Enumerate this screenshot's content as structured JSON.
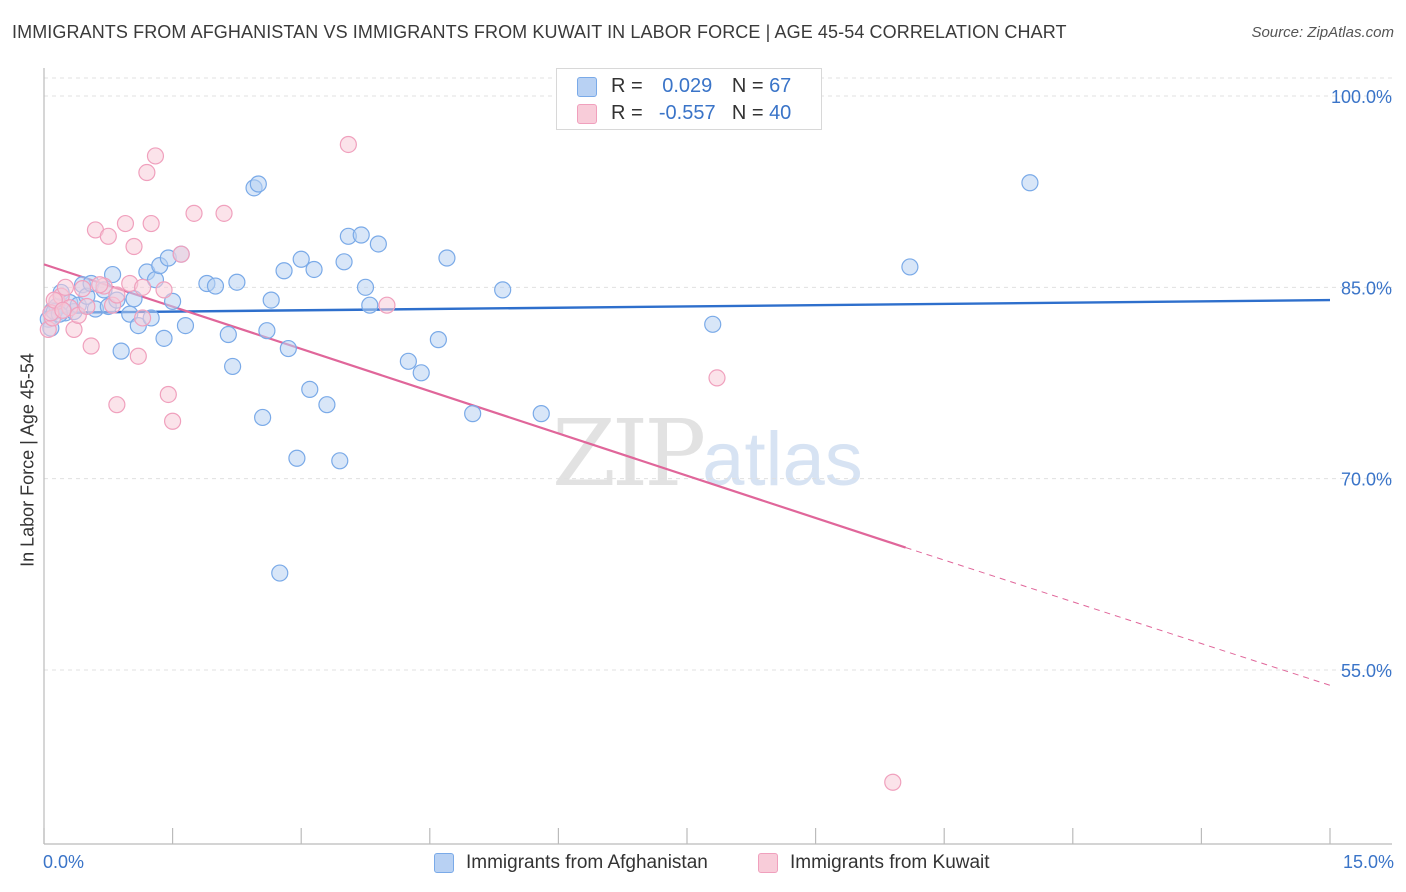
{
  "title": "IMMIGRANTS FROM AFGHANISTAN VS IMMIGRANTS FROM KUWAIT IN LABOR FORCE | AGE 45-54 CORRELATION CHART",
  "source": "Source: ZipAtlas.com",
  "watermark": {
    "zip": "ZIP",
    "atlas": "atlas"
  },
  "legend": {
    "rows": [
      {
        "r_label": "R =",
        "r_value": "0.029",
        "n_label": "N =",
        "n_value": "67"
      },
      {
        "r_label": "R =",
        "r_value": "-0.557",
        "n_label": "N =",
        "n_value": "40"
      }
    ]
  },
  "x_axis": {
    "min_label": "0.0%",
    "max_label": "15.0%"
  },
  "chart_data": {
    "type": "scatter",
    "xlabel": "",
    "ylabel": "In Labor Force | Age 45-54",
    "xlim": [
      0,
      15
    ],
    "ylim": [
      40,
      103
    ],
    "x_unit": "%",
    "y_unit": "%",
    "y_ticks": [
      {
        "value": 100,
        "label": "100.0%"
      },
      {
        "value": 85,
        "label": "85.0%"
      },
      {
        "value": 70,
        "label": "70.0%"
      },
      {
        "value": 55,
        "label": "55.0%"
      }
    ],
    "grid": "horizontal dashed",
    "legend_position": "top-center",
    "series": [
      {
        "name": "Immigrants from Afghanistan",
        "color": "#7aaae8",
        "fill": "#b8d1f3",
        "trend": {
          "x0": 0,
          "y0": 83.0,
          "x1": 15,
          "y1": 84.0,
          "color": "#2e6fcc"
        },
        "points": [
          [
            0.1,
            83.2
          ],
          [
            0.15,
            83.5
          ],
          [
            0.2,
            84.6
          ],
          [
            0.25,
            83.0
          ],
          [
            0.3,
            83.8
          ],
          [
            0.35,
            83.1
          ],
          [
            0.4,
            83.6
          ],
          [
            0.45,
            85.2
          ],
          [
            0.5,
            84.3
          ],
          [
            0.55,
            85.3
          ],
          [
            0.6,
            83.3
          ],
          [
            0.7,
            84.8
          ],
          [
            0.75,
            83.5
          ],
          [
            0.8,
            86.0
          ],
          [
            0.85,
            84.0
          ],
          [
            0.9,
            80.0
          ],
          [
            1.0,
            82.9
          ],
          [
            1.05,
            84.1
          ],
          [
            1.1,
            82.0
          ],
          [
            1.2,
            86.2
          ],
          [
            1.25,
            82.6
          ],
          [
            1.3,
            85.6
          ],
          [
            1.35,
            86.7
          ],
          [
            1.4,
            81.0
          ],
          [
            1.45,
            87.3
          ],
          [
            1.5,
            83.9
          ],
          [
            1.6,
            87.6
          ],
          [
            1.65,
            82.0
          ],
          [
            1.9,
            85.3
          ],
          [
            2.0,
            85.1
          ],
          [
            2.15,
            81.3
          ],
          [
            2.2,
            78.8
          ],
          [
            2.25,
            85.4
          ],
          [
            2.45,
            92.8
          ],
          [
            2.5,
            93.1
          ],
          [
            2.55,
            74.8
          ],
          [
            2.6,
            81.6
          ],
          [
            2.65,
            84.0
          ],
          [
            2.75,
            62.6
          ],
          [
            2.8,
            86.3
          ],
          [
            2.85,
            80.2
          ],
          [
            2.95,
            71.6
          ],
          [
            3.0,
            87.2
          ],
          [
            3.1,
            77.0
          ],
          [
            3.15,
            86.4
          ],
          [
            3.3,
            75.8
          ],
          [
            3.45,
            71.4
          ],
          [
            3.5,
            87.0
          ],
          [
            3.55,
            89.0
          ],
          [
            3.7,
            89.1
          ],
          [
            3.75,
            85.0
          ],
          [
            3.8,
            83.6
          ],
          [
            3.9,
            88.4
          ],
          [
            4.25,
            79.2
          ],
          [
            4.4,
            78.3
          ],
          [
            4.6,
            80.9
          ],
          [
            4.7,
            87.3
          ],
          [
            5.0,
            75.1
          ],
          [
            5.35,
            84.8
          ],
          [
            5.8,
            75.1
          ],
          [
            7.8,
            82.1
          ],
          [
            10.1,
            86.6
          ],
          [
            11.5,
            93.2
          ],
          [
            0.05,
            82.5
          ],
          [
            0.08,
            81.8
          ],
          [
            0.12,
            83.1
          ],
          [
            0.18,
            82.9
          ]
        ]
      },
      {
        "name": "Immigrants from Kuwait",
        "color": "#f0a0bd",
        "fill": "#f8ccd9",
        "trend": {
          "x0": 0,
          "y0": 86.8,
          "x1": 10.05,
          "y1": 64.6,
          "dash_to_x": 15,
          "dash_to_y": 53.8,
          "color": "#e0669a"
        },
        "points": [
          [
            0.05,
            81.7
          ],
          [
            0.1,
            82.6
          ],
          [
            0.15,
            83.9
          ],
          [
            0.2,
            84.3
          ],
          [
            0.25,
            85.0
          ],
          [
            0.3,
            83.4
          ],
          [
            0.35,
            81.7
          ],
          [
            0.4,
            82.8
          ],
          [
            0.45,
            84.9
          ],
          [
            0.5,
            83.5
          ],
          [
            0.55,
            80.4
          ],
          [
            0.6,
            89.5
          ],
          [
            0.7,
            85.1
          ],
          [
            0.75,
            89.0
          ],
          [
            0.8,
            83.6
          ],
          [
            0.85,
            84.4
          ],
          [
            0.95,
            90.0
          ],
          [
            1.0,
            85.3
          ],
          [
            1.05,
            88.2
          ],
          [
            1.1,
            79.6
          ],
          [
            1.15,
            85.0
          ],
          [
            1.2,
            94.0
          ],
          [
            1.25,
            90.0
          ],
          [
            1.3,
            95.3
          ],
          [
            1.4,
            84.8
          ],
          [
            1.45,
            76.6
          ],
          [
            1.5,
            74.5
          ],
          [
            1.6,
            87.6
          ],
          [
            1.75,
            90.8
          ],
          [
            2.1,
            90.8
          ],
          [
            3.55,
            96.2
          ],
          [
            4.0,
            83.6
          ],
          [
            7.85,
            77.9
          ],
          [
            9.9,
            46.2
          ],
          [
            0.08,
            83.0
          ],
          [
            0.12,
            84.0
          ],
          [
            0.22,
            83.2
          ],
          [
            0.85,
            75.8
          ],
          [
            1.15,
            82.6
          ],
          [
            0.65,
            85.2
          ]
        ]
      }
    ]
  }
}
